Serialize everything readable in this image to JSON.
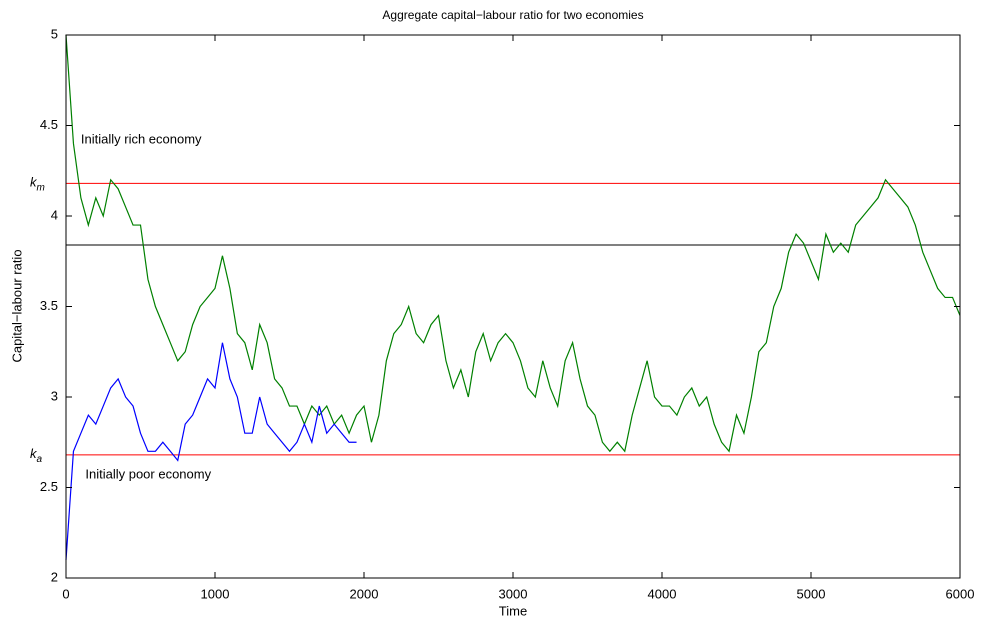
{
  "chart_data": {
    "type": "line",
    "title": "Aggregate capital−labour ratio for two economies",
    "x_label": "Time",
    "y_label": "Capital−labour ratio",
    "xlim": [
      0,
      6000
    ],
    "ylim": [
      2,
      5
    ],
    "xticks": [
      0,
      1000,
      2000,
      3000,
      4000,
      5000,
      6000
    ],
    "yticks": [
      2,
      2.5,
      3,
      3.5,
      4,
      4.5,
      5
    ],
    "hlines": [
      {
        "value": 4.18,
        "label": "k",
        "subscript": "m",
        "color": "#ff0000"
      },
      {
        "value": 3.84,
        "color": "#000000"
      },
      {
        "value": 2.68,
        "label": "k",
        "subscript": "a",
        "color": "#ff0000"
      }
    ],
    "annotations": [
      {
        "text": "Initially rich economy",
        "x": 100,
        "y": 4.42
      },
      {
        "text": "Initially poor economy",
        "x": 130,
        "y": 2.57
      }
    ],
    "x": [
      0,
      50,
      100,
      150,
      200,
      250,
      300,
      350,
      400,
      450,
      500,
      550,
      600,
      650,
      700,
      750,
      800,
      850,
      900,
      950,
      1000,
      1050,
      1100,
      1150,
      1200,
      1250,
      1300,
      1350,
      1400,
      1450,
      1500,
      1550,
      1600,
      1650,
      1700,
      1750,
      1800,
      1850,
      1900,
      1950,
      2000,
      2050,
      2100,
      2150,
      2200,
      2250,
      2300,
      2350,
      2400,
      2450,
      2500,
      2550,
      2600,
      2650,
      2700,
      2750,
      2800,
      2850,
      2900,
      2950,
      3000,
      3050,
      3100,
      3150,
      3200,
      3250,
      3300,
      3350,
      3400,
      3450,
      3500,
      3550,
      3600,
      3650,
      3700,
      3750,
      3800,
      3850,
      3900,
      3950,
      4000,
      4050,
      4100,
      4150,
      4200,
      4250,
      4300,
      4350,
      4400,
      4450,
      4500,
      4550,
      4600,
      4650,
      4700,
      4750,
      4800,
      4850,
      4900,
      4950,
      5000,
      5050,
      5100,
      5150,
      5200,
      5250,
      5300,
      5350,
      5400,
      5450,
      5500,
      5550,
      5600,
      5650,
      5700,
      5750,
      5800,
      5850,
      5900,
      5950,
      6000
    ],
    "series": [
      {
        "name": "Initially rich economy",
        "color": "#008000",
        "values": [
          5.0,
          4.4,
          4.1,
          3.95,
          4.1,
          4.0,
          4.2,
          4.15,
          4.05,
          3.95,
          3.95,
          3.65,
          3.5,
          3.4,
          3.3,
          3.2,
          3.25,
          3.4,
          3.5,
          3.55,
          3.6,
          3.78,
          3.6,
          3.35,
          3.3,
          3.15,
          3.4,
          3.3,
          3.1,
          3.05,
          2.95,
          2.95,
          2.85,
          2.95,
          2.9,
          2.95,
          2.85,
          2.9,
          2.8,
          2.9,
          2.95,
          2.75,
          2.9,
          3.2,
          3.35,
          3.4,
          3.5,
          3.35,
          3.3,
          3.4,
          3.45,
          3.2,
          3.05,
          3.15,
          3.0,
          3.25,
          3.35,
          3.2,
          3.3,
          3.35,
          3.3,
          3.2,
          3.05,
          3.0,
          3.2,
          3.05,
          2.95,
          3.2,
          3.3,
          3.1,
          2.95,
          2.9,
          2.75,
          2.7,
          2.75,
          2.7,
          2.9,
          3.05,
          3.2,
          3.0,
          2.95,
          2.95,
          2.9,
          3.0,
          3.05,
          2.95,
          3.0,
          2.85,
          2.75,
          2.7,
          2.9,
          2.8,
          3.0,
          3.25,
          3.3,
          3.5,
          3.6,
          3.8,
          3.9,
          3.85,
          3.75,
          3.65,
          3.9,
          3.8,
          3.85,
          3.8,
          3.95,
          4.0,
          4.05,
          4.1,
          4.2,
          4.15,
          4.1,
          4.05,
          3.95,
          3.8,
          3.7,
          3.6,
          3.55,
          3.55,
          3.45
        ]
      },
      {
        "name": "Initially poor economy",
        "color": "#0000ff",
        "values": [
          2.1,
          2.7,
          2.8,
          2.9,
          2.85,
          2.95,
          3.05,
          3.1,
          3.0,
          2.95,
          2.8,
          2.7,
          2.7,
          2.75,
          2.7,
          2.65,
          2.85,
          2.9,
          3.0,
          3.1,
          3.05,
          3.3,
          3.1,
          3.0,
          2.8,
          2.8,
          3.0,
          2.85,
          2.8,
          2.75,
          2.7,
          2.75,
          2.85,
          2.75,
          2.95,
          2.8,
          2.85,
          2.8,
          2.75,
          2.75,
          null,
          null,
          null,
          null,
          null,
          null,
          null,
          null,
          null,
          null,
          null,
          null,
          null,
          null,
          null,
          null,
          null,
          null,
          null,
          null,
          null,
          null,
          null,
          null,
          null,
          null,
          null,
          null,
          null,
          null,
          null,
          null,
          null,
          null,
          null,
          null,
          null,
          null,
          null,
          null,
          null,
          null,
          null,
          null,
          null,
          null,
          null,
          null,
          null,
          null,
          null,
          null,
          null,
          null,
          null,
          null,
          null,
          null,
          null,
          null,
          null,
          null,
          null,
          null,
          null,
          null,
          null,
          null,
          null,
          null,
          null,
          null,
          null,
          null,
          null,
          null,
          null,
          null,
          null,
          null,
          null
        ]
      }
    ]
  }
}
